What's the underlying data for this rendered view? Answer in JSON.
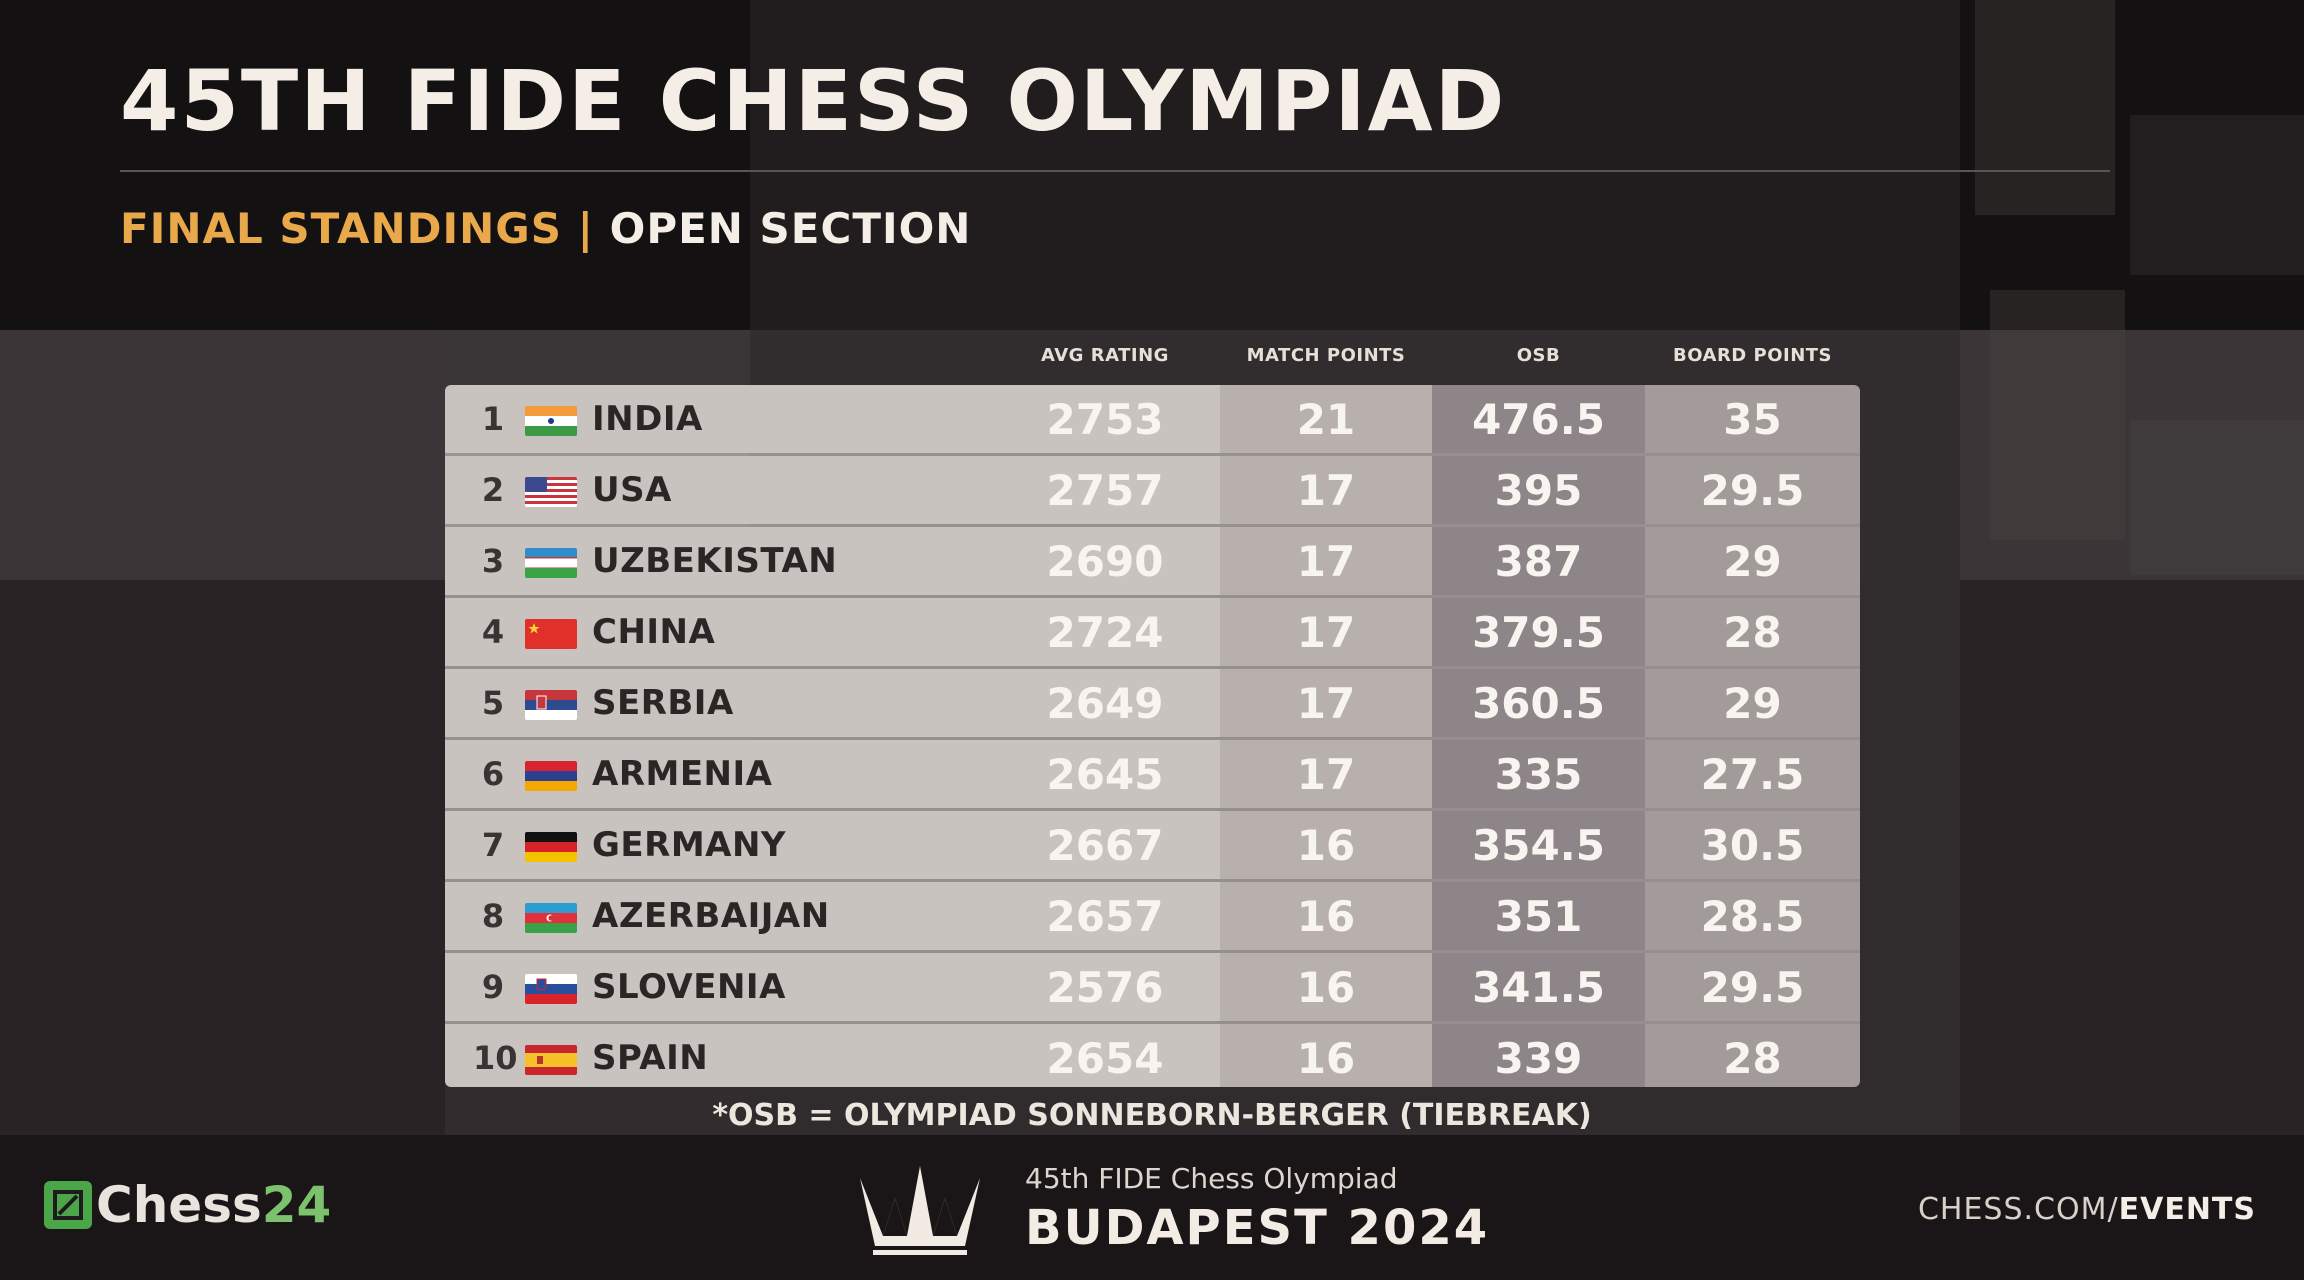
{
  "header": {
    "title": "45TH FIDE CHESS OLYMPIAD",
    "subtitle_left": "FINAL STANDINGS |",
    "subtitle_right": "OPEN SECTION"
  },
  "table": {
    "columns": [
      "AVG RATING",
      "MATCH POINTS",
      "OSB",
      "BOARD POINTS"
    ],
    "rows": [
      {
        "rank": "1",
        "country": "INDIA",
        "flag": "india-flag-icon",
        "avg_rating": "2753",
        "match_points": "21",
        "osb": "476.5",
        "board_points": "35"
      },
      {
        "rank": "2",
        "country": "USA",
        "flag": "usa-flag-icon",
        "avg_rating": "2757",
        "match_points": "17",
        "osb": "395",
        "board_points": "29.5"
      },
      {
        "rank": "3",
        "country": "UZBEKISTAN",
        "flag": "uzbekistan-flag-icon",
        "avg_rating": "2690",
        "match_points": "17",
        "osb": "387",
        "board_points": "29"
      },
      {
        "rank": "4",
        "country": "CHINA",
        "flag": "china-flag-icon",
        "avg_rating": "2724",
        "match_points": "17",
        "osb": "379.5",
        "board_points": "28"
      },
      {
        "rank": "5",
        "country": "SERBIA",
        "flag": "serbia-flag-icon",
        "avg_rating": "2649",
        "match_points": "17",
        "osb": "360.5",
        "board_points": "29"
      },
      {
        "rank": "6",
        "country": "ARMENIA",
        "flag": "armenia-flag-icon",
        "avg_rating": "2645",
        "match_points": "17",
        "osb": "335",
        "board_points": "27.5"
      },
      {
        "rank": "7",
        "country": "GERMANY",
        "flag": "germany-flag-icon",
        "avg_rating": "2667",
        "match_points": "16",
        "osb": "354.5",
        "board_points": "30.5"
      },
      {
        "rank": "8",
        "country": "AZERBAIJAN",
        "flag": "azerbaijan-flag-icon",
        "avg_rating": "2657",
        "match_points": "16",
        "osb": "351",
        "board_points": "28.5"
      },
      {
        "rank": "9",
        "country": "SLOVENIA",
        "flag": "slovenia-flag-icon",
        "avg_rating": "2576",
        "match_points": "16",
        "osb": "341.5",
        "board_points": "29.5"
      },
      {
        "rank": "10",
        "country": "SPAIN",
        "flag": "spain-flag-icon",
        "avg_rating": "2654",
        "match_points": "16",
        "osb": "339",
        "board_points": "28"
      }
    ]
  },
  "footnote": "*OSB = OLYMPIAD SONNEBORN-BERGER (TIEBREAK)",
  "footer": {
    "chess24_logo": "Chess24",
    "olympiad_line1": "45th FIDE Chess Olympiad",
    "olympiad_line2": "BUDAPEST 2024",
    "events_prefix": "CHESS.COM/",
    "events_suffix": "EVENTS"
  },
  "colors": {
    "accent_gold": "#e9a94a",
    "chess24_green": "#4aa649"
  }
}
